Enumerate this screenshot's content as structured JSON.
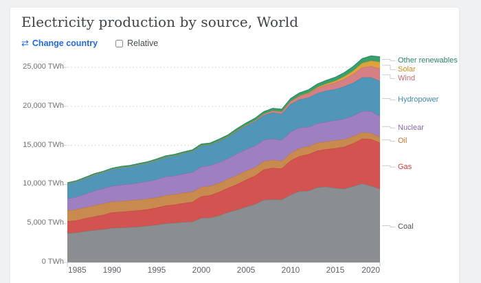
{
  "page": {
    "background": "#f0f1f3",
    "card_background": "#ffffff"
  },
  "header": {
    "title": "Electricity production by source, World",
    "change_country_icon": "⇄",
    "change_country_label": "Change country",
    "relative_label": "Relative",
    "relative_checked": false,
    "link_color": "#2468d8"
  },
  "chart_data": {
    "type": "area",
    "stacked": true,
    "title": "Electricity production by source, World",
    "y_unit": "TWh",
    "ylim": [
      0,
      26500
    ],
    "grid": "dashed-horizontal",
    "legend_position": "right-edge-labels",
    "x": [
      1985,
      1986,
      1987,
      1988,
      1989,
      1990,
      1991,
      1992,
      1993,
      1994,
      1995,
      1996,
      1997,
      1998,
      1999,
      2000,
      2001,
      2002,
      2003,
      2004,
      2005,
      2006,
      2007,
      2008,
      2009,
      2010,
      2011,
      2012,
      2013,
      2014,
      2015,
      2016,
      2017,
      2018,
      2019,
      2020
    ],
    "xticks": [
      {
        "v": 1985,
        "label": "1985"
      },
      {
        "v": 1990,
        "label": "1990"
      },
      {
        "v": 1995,
        "label": "1995"
      },
      {
        "v": 2000,
        "label": "2000"
      },
      {
        "v": 2005,
        "label": "2005"
      },
      {
        "v": 2010,
        "label": "2010"
      },
      {
        "v": 2015,
        "label": "2015"
      },
      {
        "v": 2020,
        "label": "2020"
      }
    ],
    "yticks": [
      {
        "v": 0,
        "label": "0 TWh"
      },
      {
        "v": 5000,
        "label": "5,000 TWh"
      },
      {
        "v": 10000,
        "label": "10,000 TWh"
      },
      {
        "v": 15000,
        "label": "15,000 TWh"
      },
      {
        "v": 20000,
        "label": "20,000 TWh"
      },
      {
        "v": 25000,
        "label": "25,000 TWh"
      }
    ],
    "series": [
      {
        "key": "coal",
        "label": "Coal",
        "fill": "#8b8e90",
        "line": "#727578",
        "label_color": "#4d5052",
        "values": [
          3748,
          3822,
          4006,
          4133,
          4235,
          4426,
          4447,
          4517,
          4578,
          4688,
          4810,
          4980,
          5067,
          5167,
          5212,
          5709,
          5742,
          6016,
          6440,
          6740,
          7112,
          7476,
          8010,
          8072,
          8058,
          8665,
          9137,
          9186,
          9619,
          9707,
          9538,
          9451,
          9772,
          10101,
          9824,
          9421
        ]
      },
      {
        "key": "gas",
        "label": "Gas",
        "fill": "#d25350",
        "line": "#c23d3a",
        "label_color": "#c5413d",
        "values": [
          1519,
          1546,
          1654,
          1728,
          1845,
          1983,
          2035,
          2051,
          2087,
          2113,
          2199,
          2305,
          2329,
          2431,
          2529,
          2753,
          2868,
          3005,
          3109,
          3283,
          3463,
          3615,
          3882,
          4037,
          3966,
          4388,
          4492,
          4669,
          4696,
          4792,
          5093,
          5357,
          5493,
          5733,
          5970,
          5925
        ]
      },
      {
        "key": "oil",
        "label": "Oil",
        "fill": "#c98a4f",
        "line": "#b97634",
        "label_color": "#bd7935",
        "values": [
          1404,
          1415,
          1384,
          1427,
          1460,
          1380,
          1364,
          1389,
          1354,
          1375,
          1315,
          1309,
          1325,
          1338,
          1309,
          1205,
          1181,
          1151,
          1152,
          1161,
          1149,
          1068,
          1068,
          1025,
          964,
          939,
          1000,
          1033,
          1010,
          985,
          1011,
          961,
          911,
          842,
          793,
          725
        ]
      },
      {
        "key": "nuclear",
        "label": "Nuclear",
        "fill": "#9e7fc0",
        "line": "#8a66ae",
        "label_color": "#8a66ae",
        "values": [
          1489,
          1596,
          1735,
          1875,
          1938,
          2000,
          2096,
          2111,
          2186,
          2225,
          2321,
          2406,
          2390,
          2431,
          2528,
          2591,
          2637,
          2661,
          2635,
          2752,
          2768,
          2791,
          2748,
          2738,
          2696,
          2768,
          2649,
          2471,
          2489,
          2540,
          2576,
          2612,
          2639,
          2701,
          2790,
          2693
        ]
      },
      {
        "key": "hydropower",
        "label": "Hydropower",
        "fill": "#4f96b8",
        "line": "#3c82a6",
        "label_color": "#4489b4",
        "values": [
          1954,
          1991,
          2021,
          2093,
          2088,
          2159,
          2228,
          2220,
          2330,
          2354,
          2462,
          2501,
          2567,
          2607,
          2645,
          2697,
          2638,
          2705,
          2730,
          2897,
          3020,
          3121,
          3162,
          3350,
          3343,
          3531,
          3593,
          3758,
          3874,
          3983,
          3978,
          4170,
          4197,
          4325,
          4353,
          4478
        ]
      },
      {
        "key": "wind",
        "label": "Wind",
        "fill": "#d58084",
        "line": "#c5666b",
        "label_color": "#c56a6e",
        "values": [
          0,
          0,
          0,
          1,
          2,
          4,
          4,
          5,
          6,
          7,
          8,
          9,
          12,
          16,
          21,
          31,
          38,
          52,
          63,
          85,
          104,
          133,
          171,
          221,
          276,
          346,
          437,
          526,
          648,
          717,
          831,
          959,
          1136,
          1270,
          1425,
          1596
        ]
      },
      {
        "key": "solar",
        "label": "Solar",
        "fill": "#dca33e",
        "line": "#c98c1d",
        "label_color": "#cd8e22",
        "values": [
          0,
          0,
          0,
          0,
          0,
          0,
          0,
          0,
          0,
          0,
          0,
          0,
          0,
          1,
          1,
          1,
          2,
          2,
          3,
          4,
          5,
          7,
          9,
          14,
          21,
          32,
          63,
          97,
          132,
          190,
          250,
          329,
          445,
          577,
          699,
          853
        ]
      },
      {
        "key": "other-renewables",
        "label": "Other renewables",
        "fill": "#38a06d",
        "line": "#2c8465",
        "label_color": "#2c8465",
        "values": [
          95,
          100,
          104,
          110,
          118,
          125,
          130,
          136,
          140,
          146,
          152,
          158,
          165,
          172,
          182,
          193,
          200,
          210,
          222,
          238,
          252,
          268,
          285,
          302,
          318,
          348,
          365,
          390,
          412,
          436,
          460,
          490,
          530,
          575,
          620,
          665
        ]
      }
    ]
  }
}
